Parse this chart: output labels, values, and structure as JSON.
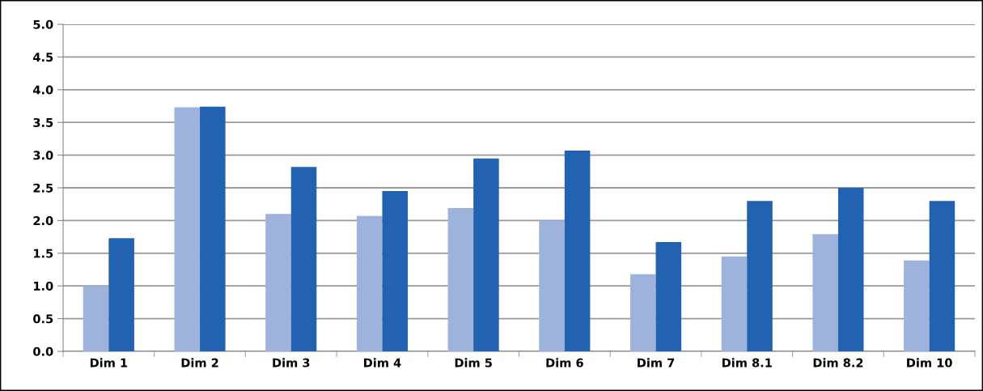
{
  "chart_data": {
    "type": "bar",
    "categories": [
      "Dim 1",
      "Dim 2",
      "Dim 3",
      "Dim 4",
      "Dim 5",
      "Dim 6",
      "Dim 7",
      "Dim 8.1",
      "Dim 8.2",
      "Dim 10"
    ],
    "series": [
      {
        "color": "#9db3dc",
        "values": [
          1.0,
          3.73,
          2.1,
          2.07,
          2.19,
          2.0,
          1.18,
          1.45,
          1.79,
          1.39
        ]
      },
      {
        "color": "#2262b0",
        "values": [
          1.73,
          3.74,
          2.82,
          2.45,
          2.95,
          3.07,
          1.67,
          2.3,
          2.5,
          2.3
        ]
      }
    ],
    "ylim": [
      0,
      5
    ],
    "yticks": [
      {
        "value": 0,
        "label": "0.0"
      },
      {
        "value": 0.5,
        "label": "0.5"
      },
      {
        "value": 1,
        "label": "1.0"
      },
      {
        "value": 1.5,
        "label": "1.5"
      },
      {
        "value": 2,
        "label": "2.0"
      },
      {
        "value": 2.5,
        "label": "2.5"
      },
      {
        "value": 3,
        "label": "3.0"
      },
      {
        "value": 3.5,
        "label": "3.5"
      },
      {
        "value": 4,
        "label": "4.0"
      },
      {
        "value": 4.5,
        "label": "4.5"
      },
      {
        "value": 5,
        "label": "5.0"
      }
    ],
    "grid": "y"
  }
}
